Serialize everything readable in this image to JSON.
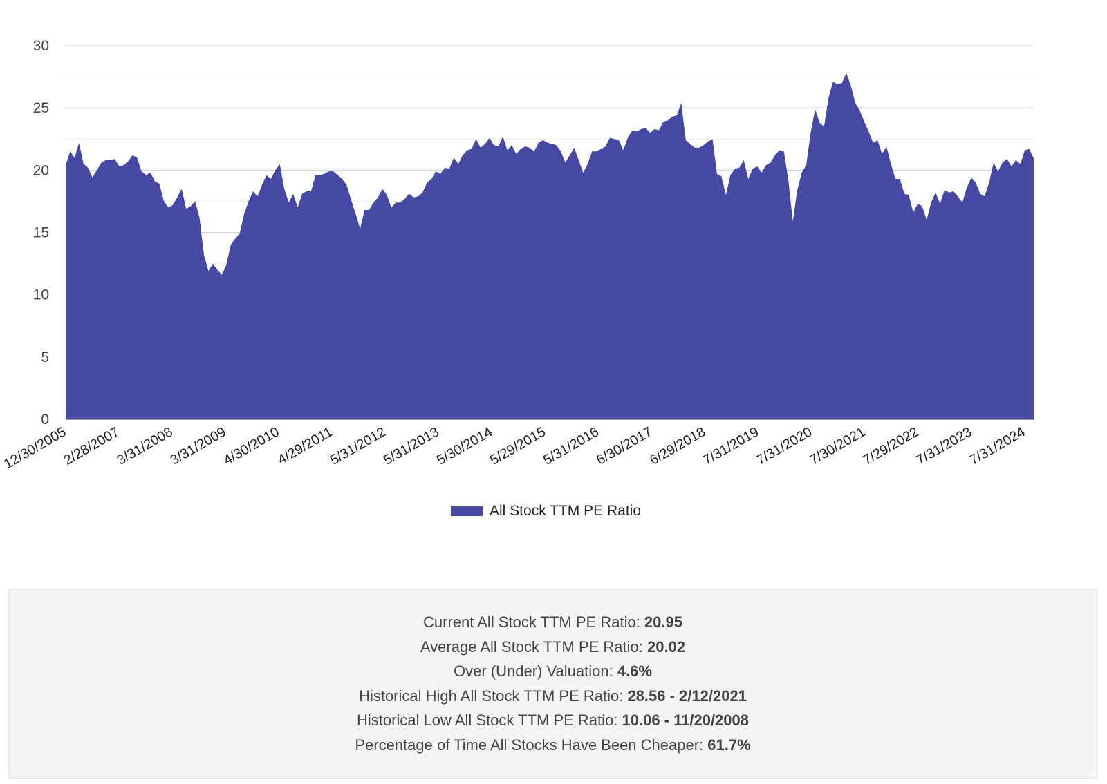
{
  "chart_data": {
    "type": "area",
    "x_tick_labels": [
      "12/30/2005",
      "2/28/2007",
      "3/31/2008",
      "3/31/2009",
      "4/30/2010",
      "4/29/2011",
      "5/31/2012",
      "5/31/2013",
      "5/30/2014",
      "5/29/2015",
      "5/31/2016",
      "6/30/2017",
      "6/29/2018",
      "7/31/2019",
      "7/31/2020",
      "7/30/2021",
      "7/29/2022",
      "7/31/2023",
      "7/31/2024"
    ],
    "ylim": [
      0,
      30
    ],
    "y_ticks": [
      0,
      5,
      10,
      15,
      20,
      25,
      30
    ],
    "grid": true,
    "legend_position": "bottom",
    "series": [
      {
        "name": "All Stock TTM PE Ratio",
        "color": "#4549a3",
        "values": [
          20.4,
          21.5,
          21.0,
          22.2,
          20.5,
          20.2,
          19.4,
          20.0,
          20.6,
          20.8,
          20.8,
          20.9,
          20.3,
          20.4,
          20.7,
          21.2,
          21.0,
          19.9,
          19.6,
          19.8,
          19.1,
          18.9,
          17.5,
          17.0,
          17.2,
          17.8,
          18.5,
          16.9,
          17.1,
          17.5,
          16.2,
          13.2,
          11.9,
          12.5,
          12.0,
          11.6,
          12.4,
          14.0,
          14.5,
          14.9,
          16.5,
          17.5,
          18.3,
          17.9,
          18.8,
          19.6,
          19.3,
          20.0,
          20.5,
          18.5,
          17.4,
          18.1,
          17.0,
          18.1,
          18.3,
          18.3,
          19.6,
          19.6,
          19.7,
          19.9,
          19.9,
          19.6,
          19.3,
          18.8,
          17.6,
          16.5,
          15.3,
          16.8,
          16.8,
          17.4,
          17.8,
          18.5,
          18.0,
          17.0,
          17.4,
          17.4,
          17.7,
          18.1,
          17.8,
          17.9,
          18.2,
          19.0,
          19.3,
          19.9,
          19.7,
          20.2,
          20.1,
          21.0,
          20.5,
          21.2,
          21.6,
          21.7,
          22.5,
          21.8,
          22.1,
          22.6,
          22.0,
          21.9,
          22.7,
          21.6,
          22.0,
          21.3,
          21.7,
          21.9,
          21.8,
          21.5,
          22.2,
          22.4,
          22.2,
          22.1,
          22.0,
          21.5,
          20.6,
          21.2,
          21.8,
          20.8,
          19.8,
          20.5,
          21.5,
          21.5,
          21.7,
          21.9,
          22.6,
          22.5,
          22.4,
          21.6,
          22.6,
          23.2,
          23.1,
          23.3,
          23.4,
          23.0,
          23.3,
          23.2,
          23.9,
          24.0,
          24.3,
          24.4,
          25.4,
          22.4,
          22.1,
          21.8,
          21.8,
          22.0,
          22.3,
          22.5,
          19.7,
          19.5,
          18.0,
          19.6,
          20.1,
          20.2,
          20.8,
          19.3,
          20.1,
          20.3,
          19.8,
          20.4,
          20.6,
          21.2,
          21.6,
          21.5,
          19.2,
          15.9,
          18.4,
          19.8,
          20.4,
          23.0,
          24.9,
          23.8,
          23.5,
          25.8,
          27.1,
          26.9,
          27.0,
          27.8,
          26.8,
          25.4,
          24.8,
          23.9,
          23.1,
          22.2,
          22.4,
          21.3,
          21.9,
          20.5,
          19.3,
          19.3,
          18.1,
          18.0,
          16.6,
          17.3,
          17.1,
          16.0,
          17.4,
          18.2,
          17.3,
          18.4,
          18.2,
          18.3,
          17.9,
          17.4,
          18.6,
          19.4,
          19.0,
          18.1,
          17.9,
          19.0,
          20.6,
          19.9,
          20.6,
          20.9,
          20.3,
          20.8,
          20.5,
          21.6,
          21.7,
          20.95
        ]
      }
    ]
  },
  "legend": {
    "label": "All Stock TTM PE Ratio",
    "color": "#4549a3"
  },
  "stats": [
    {
      "label": "Current All Stock TTM PE Ratio: ",
      "value": "20.95"
    },
    {
      "label": "Average All Stock TTM PE Ratio: ",
      "value": "20.02"
    },
    {
      "label": "Over (Under) Valuation: ",
      "value": "4.6%"
    },
    {
      "label": "Historical High All Stock TTM PE Ratio: ",
      "value": "28.56 - 2/12/2021"
    },
    {
      "label": "Historical Low All Stock TTM PE Ratio: ",
      "value": "10.06 - 11/20/2008"
    },
    {
      "label": "Percentage of Time All Stocks Have Been Cheaper: ",
      "value": "61.7%"
    }
  ]
}
